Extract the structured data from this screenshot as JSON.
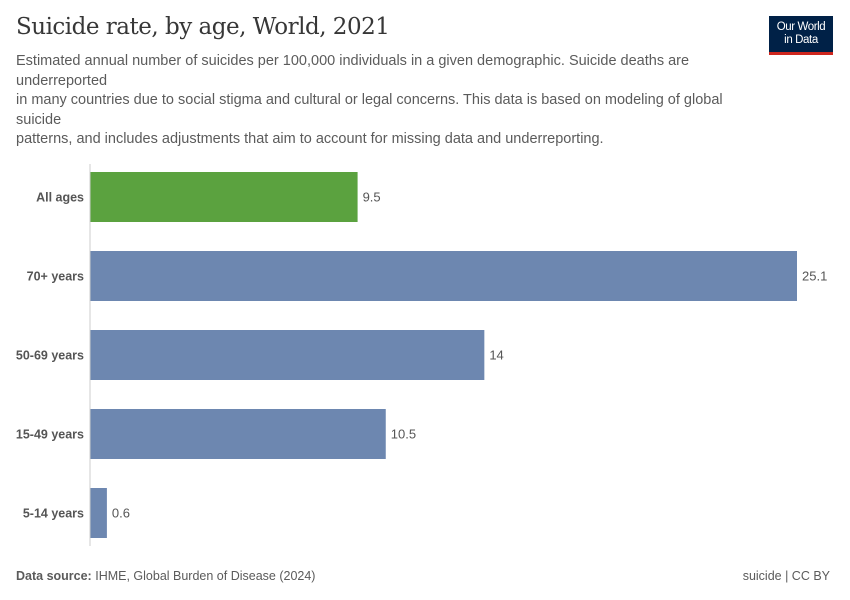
{
  "header": {
    "title": "Suicide rate, by age, World, 2021",
    "subtitle_lines": [
      "Estimated annual number of suicides per 100,000 individuals in a given demographic. Suicide deaths are",
      "underreported",
      "in many countries due to social stigma and cultural or legal concerns. This data is based on modeling of global",
      "suicide",
      "patterns, and includes adjustments that aim to account for missing data and underreporting."
    ],
    "logo": [
      "Our World",
      "in Data"
    ]
  },
  "chart_data": {
    "type": "bar",
    "orientation": "horizontal",
    "categories": [
      "All ages",
      "70+ years",
      "50-69 years",
      "15-49 years",
      "5-14 years"
    ],
    "values": [
      9.5,
      25.1,
      14,
      10.5,
      0.6
    ],
    "value_labels": [
      "9.5",
      "25.1",
      "14",
      "10.5",
      "0.6"
    ],
    "colors": [
      "#5ba23f",
      "#6d87b0",
      "#6d87b0",
      "#6d87b0",
      "#6d87b0"
    ],
    "title": "Suicide rate, by age, World, 2021",
    "xlim": [
      0,
      25.1
    ],
    "grid": false
  },
  "footer": {
    "source_label": "Data source:",
    "source": "IHME, Global Burden of Disease (2024)",
    "license": "suicide | CC BY"
  }
}
